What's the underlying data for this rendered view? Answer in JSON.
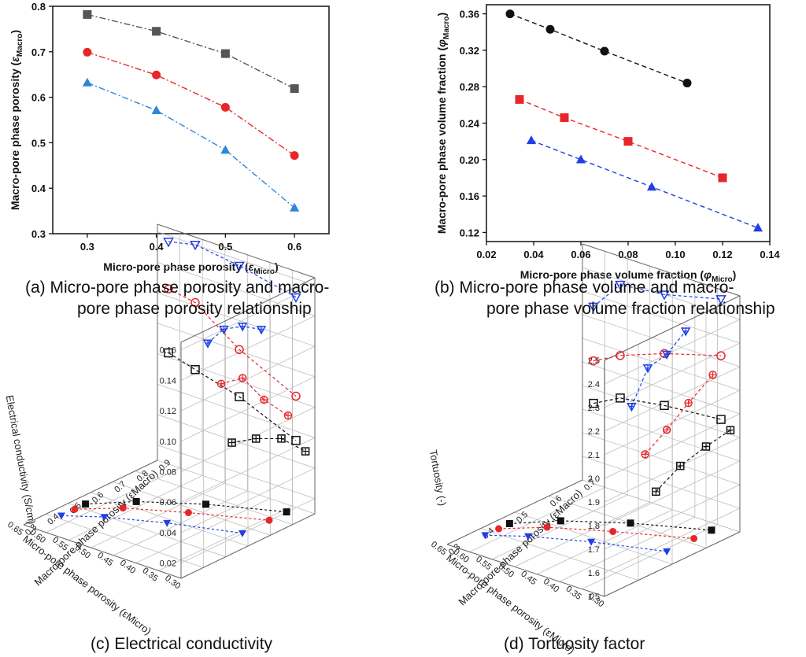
{
  "captions": {
    "a": [
      "(a)  Micro-pore phase porosity and macro-",
      "pore phase porosity relationship"
    ],
    "b": [
      "(b)  Micro-pore phase volume and macro-",
      "pore phase volume fraction relationship"
    ],
    "c": "(c)  Electrical conductivity",
    "d": "(d)  Tortuosity factor"
  },
  "colors": {
    "black": "#111111",
    "red": "#e8262a",
    "blue": "#1f3fe6",
    "gray": "#555555",
    "lightblue": "#2e86d8"
  },
  "chart_data": [
    {
      "panel": "a",
      "type": "line",
      "xlabel": "Micro-pore phase porosity (εMicro)",
      "ylabel": "Macro-pore phase porosity (εMacro)",
      "xticks": [
        "0.3",
        "0.4",
        "0.5",
        "0.6"
      ],
      "yticks": [
        "0.3",
        "0.4",
        "0.5",
        "0.6",
        "0.7",
        "0.8"
      ],
      "xlim": [
        0.25,
        0.65
      ],
      "ylim": [
        0.3,
        0.8
      ],
      "x": [
        0.3,
        0.4,
        0.5,
        0.6
      ],
      "series": [
        {
          "marker": "square",
          "color": "#555555",
          "values": [
            0.782,
            0.745,
            0.696,
            0.619
          ]
        },
        {
          "marker": "circle",
          "color": "#e8262a",
          "values": [
            0.699,
            0.649,
            0.578,
            0.472
          ]
        },
        {
          "marker": "triangle",
          "color": "#2e86d8",
          "values": [
            0.632,
            0.571,
            0.484,
            0.357
          ]
        }
      ]
    },
    {
      "panel": "b",
      "type": "line",
      "xlabel": "Micro-pore phase volume fraction (φMicro)",
      "ylabel": "Macro-pore phase volume fraction (φMacro)",
      "xticks": [
        "0.02",
        "0.04",
        "0.06",
        "0.08",
        "0.10",
        "0.12",
        "0.14"
      ],
      "yticks": [
        "0.12",
        "0.16",
        "0.20",
        "0.24",
        "0.28",
        "0.32",
        "0.36"
      ],
      "xlim": [
        0.02,
        0.14
      ],
      "ylim": [
        0.11,
        0.37
      ],
      "series": [
        {
          "marker": "circle",
          "color": "#111111",
          "x": [
            0.03,
            0.047,
            0.07,
            0.105
          ],
          "values": [
            0.36,
            0.343,
            0.319,
            0.284
          ]
        },
        {
          "marker": "square",
          "color": "#e8262a",
          "x": [
            0.034,
            0.053,
            0.08,
            0.12
          ],
          "values": [
            0.266,
            0.246,
            0.22,
            0.18
          ]
        },
        {
          "marker": "triangle",
          "color": "#1f3fe6",
          "x": [
            0.039,
            0.06,
            0.09,
            0.135
          ],
          "values": [
            0.221,
            0.2,
            0.17,
            0.125
          ]
        }
      ]
    },
    {
      "panel": "c",
      "type": "scatter3d",
      "zlabel": "Electrical conductivity (S/cm)",
      "xlabel": "Micro-pore phase porosity (εMicro)",
      "ylabel": "Macro-pore phase porosity (εMacro)",
      "zticks": [
        "0.02",
        "0.04",
        "0.06",
        "0.08",
        "0.10",
        "0.12",
        "0.14",
        "0.16"
      ],
      "xticks": [
        "0.30",
        "0.35",
        "0.40",
        "0.45",
        "0.50",
        "0.55",
        "0.60",
        "0.65"
      ],
      "yticks": [
        "0.3",
        "0.4",
        "0.5",
        "0.6",
        "0.7",
        "0.8",
        "0.9"
      ],
      "zlim": [
        0.01,
        0.165
      ],
      "series": [
        {
          "marker": "square",
          "color": "#111111",
          "values": [
            0.083,
            0.078,
            0.07,
            0.054
          ]
        },
        {
          "marker": "circle",
          "color": "#e8262a",
          "values": [
            0.125,
            0.122,
            0.101,
            0.083
          ]
        },
        {
          "marker": "triangle-down",
          "color": "#1f3fe6",
          "values": [
            0.156,
            0.16,
            0.156,
            0.148
          ]
        }
      ]
    },
    {
      "panel": "d",
      "type": "scatter3d",
      "zlabel": "Tortuosity (-)",
      "xlabel": "Micro-pore phase porosity (εMicro)",
      "ylabel": "Macro-pore phase porosity (εMacro)",
      "zticks": [
        "1.5",
        "1.6",
        "1.7",
        "1.8",
        "1.9",
        "2.0",
        "2.1",
        "2.2",
        "2.3",
        "2.4",
        "2.5"
      ],
      "xticks": [
        "0.30",
        "0.35",
        "0.40",
        "0.45",
        "0.50",
        "0.55",
        "0.60",
        "0.65"
      ],
      "yticks": [
        "0.3",
        "0.4",
        "0.5",
        "0.6",
        "0.7"
      ],
      "zlim": [
        1.5,
        2.5
      ],
      "series": [
        {
          "marker": "square",
          "color": "#111111",
          "values": [
            1.84,
            1.9,
            1.93,
            1.95
          ]
        },
        {
          "marker": "circle",
          "color": "#e8262a",
          "values": [
            2.02,
            2.08,
            2.15,
            2.22
          ]
        },
        {
          "marker": "triangle-down",
          "color": "#1f3fe6",
          "values": [
            2.25,
            2.38,
            2.4,
            2.46
          ]
        }
      ]
    }
  ]
}
